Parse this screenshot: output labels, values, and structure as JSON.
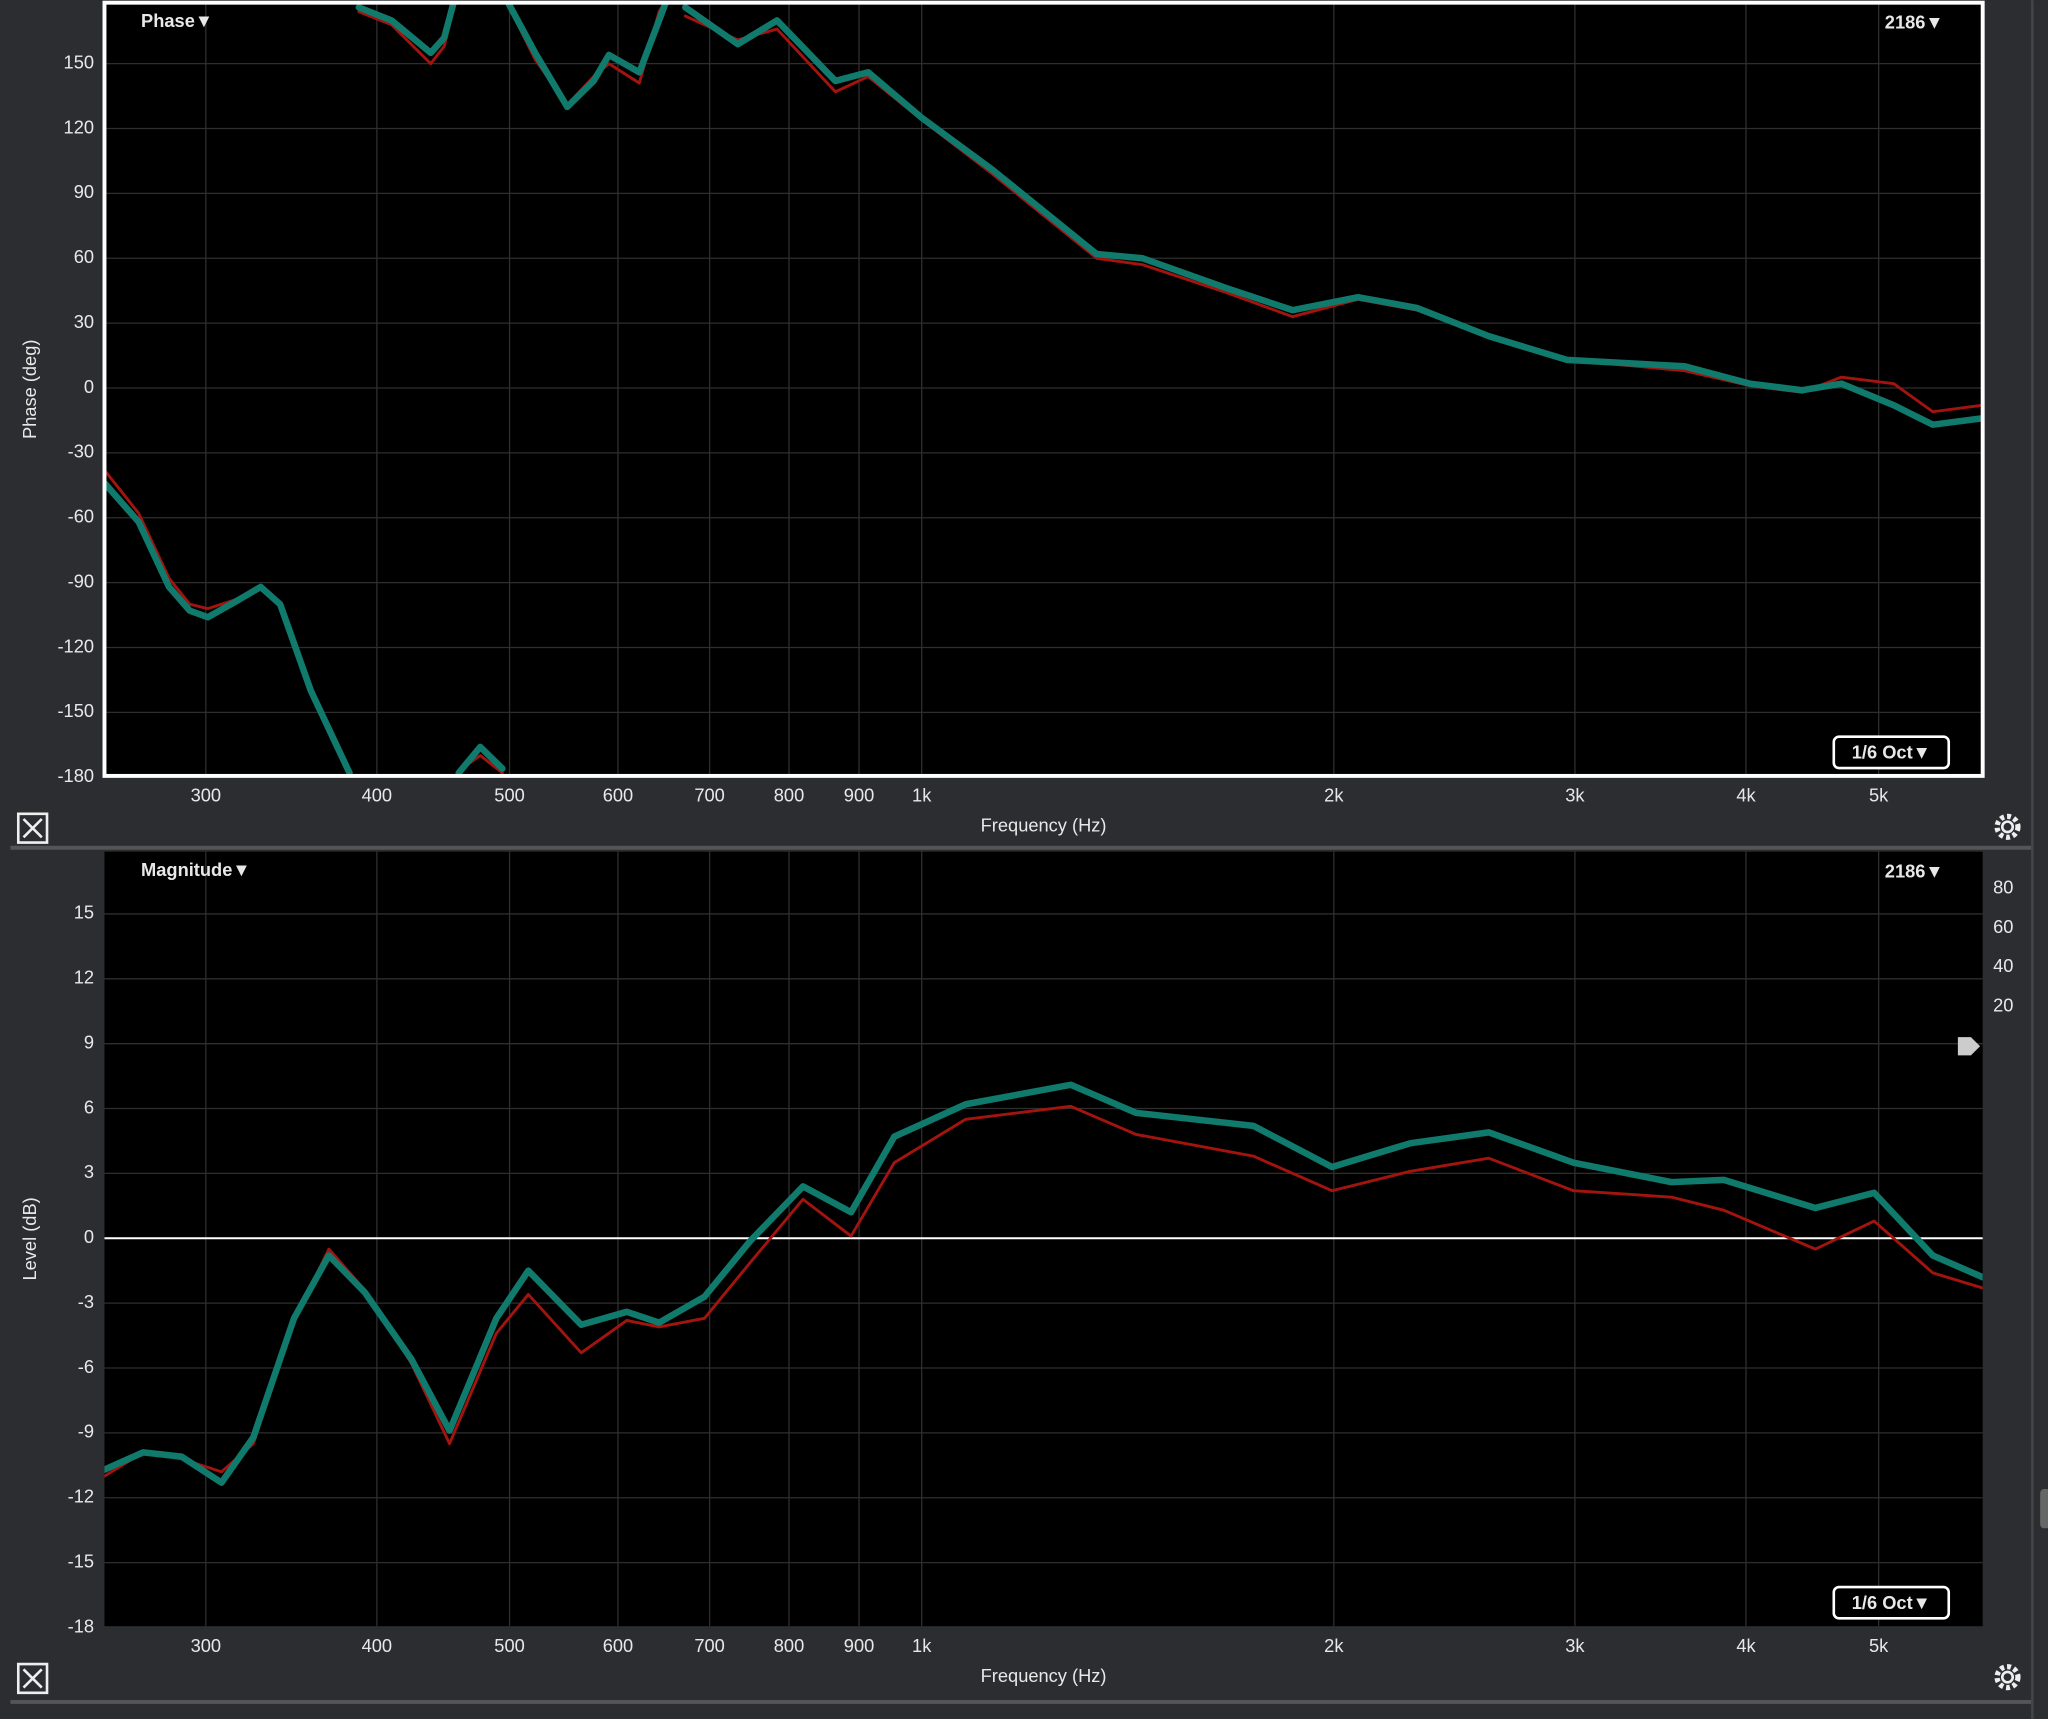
{
  "chart_data": [
    {
      "type": "line",
      "title": "Phase▼",
      "trace_label": "2186▼",
      "smoothing": "1/6 Oct▼",
      "x_label": "Frequency (Hz)",
      "y_label": "Phase (deg)",
      "log_x": true,
      "grid": true,
      "frame": true,
      "xlim": [
        253,
        5956
      ],
      "ylim": [
        -180,
        180
      ],
      "xticks": [
        300,
        400,
        500,
        600,
        700,
        800,
        900,
        {
          "value": 1000,
          "label": "1k"
        },
        {
          "value": 2000,
          "label": "2k"
        },
        {
          "value": 3000,
          "label": "3k"
        },
        {
          "value": 4000,
          "label": "4k"
        },
        {
          "value": 5000,
          "label": "5k"
        }
      ],
      "yticks": [
        -180,
        -150,
        -120,
        -90,
        -60,
        -30,
        0,
        30,
        60,
        90,
        120,
        150
      ],
      "x": [
        253,
        268,
        282,
        292,
        301,
        315,
        329,
        340,
        358,
        382,
        385,
        388,
        410,
        438,
        448,
        455,
        457,
        459,
        476,
        494,
        497,
        499,
        522,
        551,
        576,
        591,
        622,
        643,
        650,
        660,
        672,
        734,
        784,
        865,
        914,
        1000,
        1126,
        1342,
        1450,
        1672,
        1866,
        2083,
        2300,
        2595,
        2960,
        3608,
        4027,
        4397,
        4697,
        5128,
        5477,
        5956
      ],
      "series": [
        {
          "color": "#a3140f",
          "values": [
            -38,
            -58,
            -88,
            -100,
            -102,
            -98,
            -93,
            -101,
            -141,
            -179,
            null,
            174,
            168,
            150,
            158,
            176,
            null,
            -177,
            -170,
            -178,
            null,
            177,
            152,
            131,
            144,
            150,
            141,
            174,
            179,
            null,
            172,
            161,
            166,
            137,
            144,
            124,
            99,
            60,
            57,
            44,
            33,
            41,
            36,
            24,
            13,
            8,
            1,
            -2,
            5,
            2,
            -11,
            -8
          ]
        },
        {
          "color": "#107a6c",
          "values": [
            -44,
            -62,
            -92,
            -103,
            -106,
            -99,
            -92,
            -100,
            -140,
            -178,
            null,
            176,
            170,
            155,
            162,
            178,
            null,
            -178,
            -166,
            -176,
            null,
            178,
            155,
            130,
            142,
            154,
            146,
            170,
            178,
            null,
            176,
            159,
            170,
            142,
            146,
            125,
            101,
            62,
            60,
            46,
            36,
            42,
            37,
            24,
            13,
            10,
            2,
            -1,
            2,
            -8,
            -17,
            -14
          ]
        }
      ]
    },
    {
      "type": "line",
      "title": "Magnitude▼",
      "trace_label": "2186▼",
      "smoothing": "1/6 Oct▼",
      "x_label": "Frequency (Hz)",
      "y_label": "Level (dB)",
      "log_x": true,
      "grid": true,
      "zero_line": true,
      "xlim": [
        253,
        5956
      ],
      "ylim": [
        -18,
        18
      ],
      "y2lim": [
        0,
        100
      ],
      "y2ticks": [
        20,
        40,
        60,
        80
      ],
      "xticks": [
        300,
        400,
        500,
        600,
        700,
        800,
        900,
        {
          "value": 1000,
          "label": "1k"
        },
        {
          "value": 2000,
          "label": "2k"
        },
        {
          "value": 3000,
          "label": "3k"
        },
        {
          "value": 4000,
          "label": "4k"
        },
        {
          "value": 5000,
          "label": "5k"
        }
      ],
      "yticks": [
        -18,
        -15,
        -12,
        -9,
        -6,
        -3,
        0,
        3,
        6,
        9,
        12,
        15
      ],
      "x": [
        253,
        270,
        288,
        308,
        325,
        348,
        369,
        392,
        424,
        452,
        489,
        516,
        564,
        609,
        643,
        694,
        750,
        819,
        888,
        955,
        1077,
        1285,
        1434,
        1747,
        1994,
        2275,
        2595,
        2993,
        3529,
        3853,
        4495,
        4962,
        5477,
        5956
      ],
      "series": [
        {
          "color": "#a3140f",
          "values": [
            -11.0,
            -9.9,
            -10.2,
            -10.8,
            -9.5,
            -3.8,
            -0.5,
            -2.4,
            -5.8,
            -9.5,
            -4.4,
            -2.6,
            -5.3,
            -3.8,
            -4.1,
            -3.7,
            -1.1,
            1.8,
            0.1,
            3.5,
            5.5,
            6.1,
            4.8,
            3.8,
            2.2,
            3.1,
            3.7,
            2.2,
            1.9,
            1.3,
            -0.5,
            0.8,
            -1.6,
            -2.3
          ]
        },
        {
          "color": "#107a6c",
          "values": [
            -10.7,
            -9.9,
            -10.1,
            -11.3,
            -9.2,
            -3.7,
            -0.8,
            -2.5,
            -5.6,
            -8.9,
            -3.7,
            -1.5,
            -4.0,
            -3.4,
            -3.9,
            -2.7,
            -0.1,
            2.4,
            1.2,
            4.7,
            6.2,
            7.1,
            5.8,
            5.2,
            3.3,
            4.4,
            4.9,
            3.5,
            2.6,
            2.7,
            1.4,
            2.1,
            -0.8,
            -1.8
          ]
        }
      ]
    }
  ]
}
